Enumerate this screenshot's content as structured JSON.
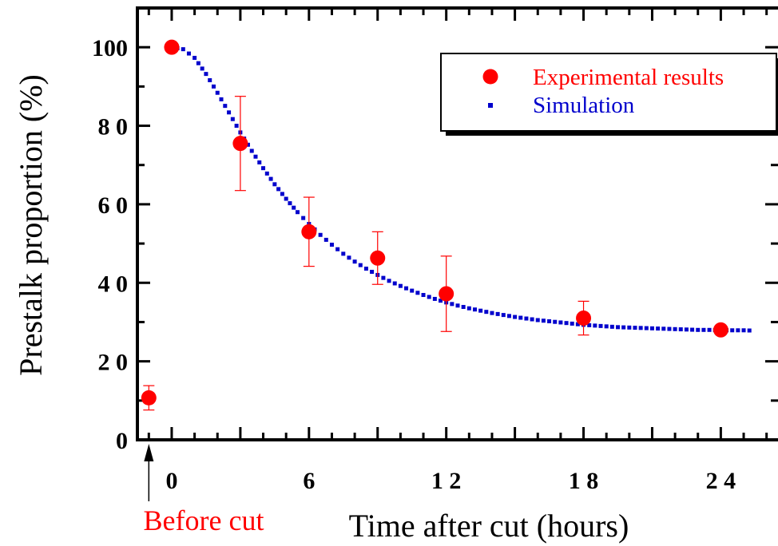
{
  "chart_data": {
    "type": "scatter",
    "title": "",
    "xlabel": "Time after cut (hours)",
    "ylabel": "Prestalk proportion (%)",
    "xlim": [
      -1.5,
      26.5
    ],
    "ylim": [
      0,
      110
    ],
    "x_ticks": [
      {
        "value": 0,
        "label": "0"
      },
      {
        "value": 6,
        "label": "6"
      },
      {
        "value": 12,
        "label": "1 2"
      },
      {
        "value": 18,
        "label": "1 8"
      },
      {
        "value": 24,
        "label": "2 4"
      }
    ],
    "y_ticks": [
      {
        "value": 0,
        "label": "0"
      },
      {
        "value": 20,
        "label": "2 0"
      },
      {
        "value": 40,
        "label": "4 0"
      },
      {
        "value": 60,
        "label": "6 0"
      },
      {
        "value": 80,
        "label": "8 0"
      },
      {
        "value": 100,
        "label": "100"
      }
    ],
    "series": [
      {
        "name": "Experimental results",
        "kind": "points-with-error-bars",
        "color": "#ff0000",
        "points": [
          {
            "x": 0,
            "y": 100,
            "err": 0
          },
          {
            "x": 3,
            "y": 75.5,
            "err": 12
          },
          {
            "x": 6,
            "y": 53,
            "err": 8.8
          },
          {
            "x": 9,
            "y": 46.3,
            "err": 6.7
          },
          {
            "x": 12,
            "y": 37.2,
            "err": 9.6
          },
          {
            "x": 18,
            "y": 31,
            "err": 4.3
          },
          {
            "x": 24,
            "y": 28,
            "err": 1
          }
        ]
      },
      {
        "name": "Simulation",
        "kind": "dotted-line",
        "color": "#0000cc",
        "x": [
          0,
          0.5,
          1,
          1.5,
          2,
          2.5,
          3,
          3.5,
          4,
          4.5,
          5,
          5.5,
          6,
          6.5,
          7,
          7.5,
          8,
          8.5,
          9,
          9.5,
          10,
          10.5,
          11,
          11.5,
          12,
          12.5,
          13,
          13.5,
          14,
          14.5,
          15,
          15.5,
          16,
          16.5,
          17,
          17.5,
          18,
          18.5,
          19,
          19.5,
          20,
          20.5,
          21,
          21.5,
          22,
          22.5,
          23,
          23.5,
          24,
          24.5,
          25,
          25.5
        ],
        "values": [
          100,
          99.5,
          97.3,
          93.2,
          88.4,
          83.4,
          78.3,
          73.6,
          69.2,
          65.1,
          61.4,
          58,
          55,
          52.2,
          49.7,
          47.4,
          45.4,
          43.6,
          42,
          40.5,
          39.2,
          38,
          36.9,
          35.9,
          35,
          34.2,
          33.5,
          32.9,
          32.3,
          31.8,
          31.3,
          30.9,
          30.5,
          30.2,
          29.9,
          29.6,
          29.3,
          29.1,
          28.9,
          28.7,
          28.6,
          28.5,
          28.4,
          28.3,
          28.2,
          28.1,
          28,
          28,
          27.9,
          27.9,
          27.9,
          27.8
        ]
      }
    ],
    "before_cut": {
      "x": -1,
      "y": 10.7,
      "err": 3.1,
      "label": "Before cut"
    },
    "legend": {
      "position": "top-right"
    },
    "grid": false
  }
}
